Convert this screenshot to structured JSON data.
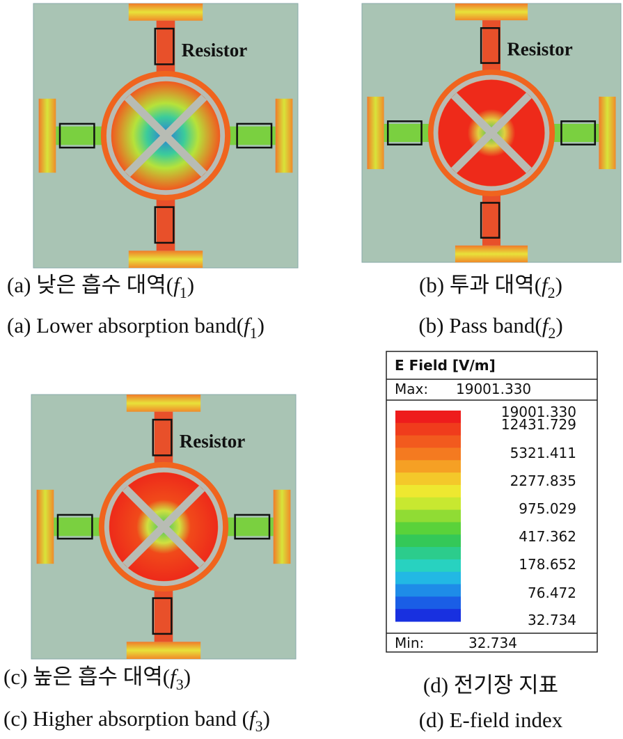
{
  "panels": [
    {
      "annotation": "Resistor",
      "caption_ko": {
        "prefix": "(a) 낮은 흡수 대역(",
        "var": "f",
        "sub": "1",
        "suffix": ")"
      },
      "caption_en": {
        "prefix": "(a) Lower absorption band(",
        "var": "f",
        "sub": "1",
        "suffix": ")"
      }
    },
    {
      "annotation": "Resistor",
      "caption_ko": {
        "prefix": "(b) 투과 대역(",
        "var": "f",
        "sub": "2",
        "suffix": ")"
      },
      "caption_en": {
        "prefix": "(b) Pass band(",
        "var": "f",
        "sub": "2",
        "suffix": ")"
      }
    },
    {
      "annotation": "Resistor",
      "caption_ko": {
        "prefix": "(c) 높은 흡수 대역(",
        "var": "f",
        "sub": "3",
        "suffix": ")"
      },
      "caption_en": {
        "prefix": "(c) Higher absorption band (",
        "var": "f",
        "sub": "3",
        "suffix": ")"
      }
    }
  ],
  "legend": {
    "title": "E Field [V/m]",
    "max_label": "Max:",
    "max_value": "19001.330",
    "levels": [
      "19001.330",
      "12431.729",
      "5321.411",
      "2277.835",
      "975.029",
      "417.362",
      "178.652",
      "76.472",
      "32.734"
    ],
    "min_label": "Min:",
    "min_value": "32.734",
    "caption_ko": "(d) 전기장 지표",
    "caption_en": "(d) E-field index"
  }
}
